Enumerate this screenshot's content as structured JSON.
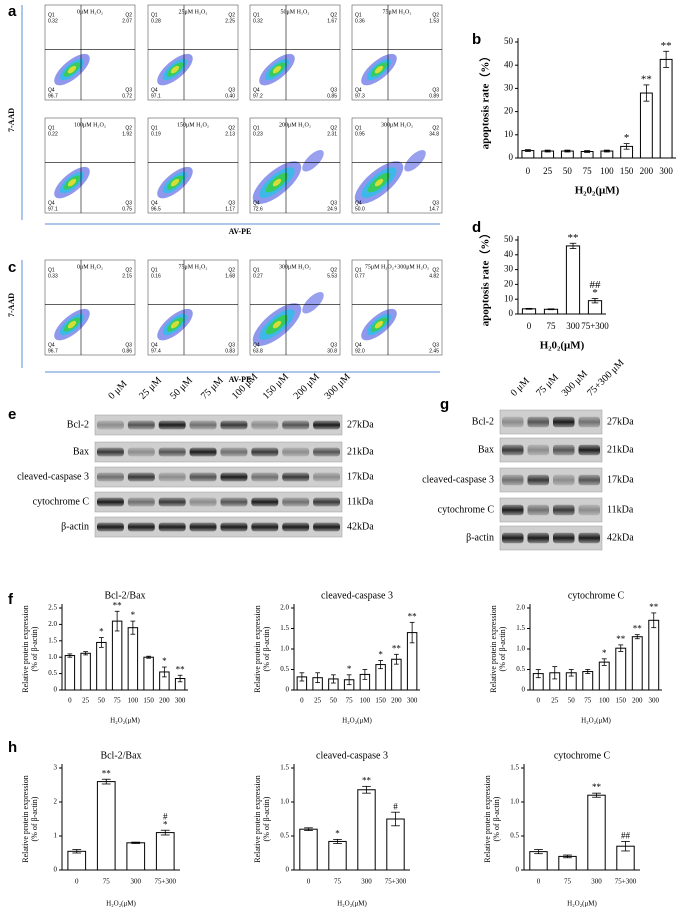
{
  "flow_cytometry": {
    "quadrant_names": [
      "Q1",
      "Q2",
      "Q3",
      "Q4"
    ],
    "panels": [
      {
        "letter": "a",
        "y_label": "7-AAD",
        "x_label": "AV-PE",
        "plots": [
          {
            "title": "0μM H₂O₂",
            "q1": "0.32",
            "q2": "2.07",
            "q3": "0.72",
            "q4": "96.7"
          },
          {
            "title": "25μM H₂O₂",
            "q1": "0.28",
            "q2": "2.25",
            "q3": "0.40",
            "q4": "97.1"
          },
          {
            "title": "50μM H₂O₂",
            "q1": "0.32",
            "q2": "1.67",
            "q3": "0.85",
            "q4": "97.2"
          },
          {
            "title": "75μM H₂O₂",
            "q1": "0.36",
            "q2": "1.53",
            "q3": "0.89",
            "q4": "97.3"
          },
          {
            "title": "100μM H₂O₂",
            "q1": "0.22",
            "q2": "1.92",
            "q3": "0.75",
            "q4": "97.1"
          },
          {
            "title": "150μM H₂O₂",
            "q1": "0.19",
            "q2": "2.13",
            "q3": "1.17",
            "q4": "96.5"
          },
          {
            "title": "200μM H₂O₂",
            "q1": "0.23",
            "q2": "2.31",
            "q3": "24.9",
            "q4": "72.6"
          },
          {
            "title": "300μM H₂O₂",
            "q1": "0.95",
            "q2": "34.8",
            "q3": "14.7",
            "q4": "50.0"
          }
        ]
      },
      {
        "letter": "c",
        "y_label": "7-AAD",
        "x_label": "AV-PE",
        "plots": [
          {
            "title": "0μM H₂O₂",
            "q1": "0.33",
            "q2": "2.15",
            "q3": "0.86",
            "q4": "96.7"
          },
          {
            "title": "75μM H₂O₂",
            "q1": "0.16",
            "q2": "1.68",
            "q3": "0.83",
            "q4": "97.4"
          },
          {
            "title": "300μM H₂O₂",
            "q1": "0.27",
            "q2": "5.53",
            "q3": "30.8",
            "q4": "63.8"
          },
          {
            "title": "75μM H₂O₂+300μM H₂O₂",
            "q1": "0.77",
            "q2": "4.82",
            "q3": "2.45",
            "q4": "92.0"
          }
        ]
      }
    ]
  },
  "western_blots": [
    {
      "letter": "e",
      "lanes": [
        "0 μM",
        "25 μM",
        "50 μM",
        "75 μM",
        "100 μM",
        "150 μM",
        "200 μM",
        "300 μM"
      ],
      "proteins": [
        "Bcl-2",
        "Bax",
        "cleaved-caspase 3",
        "cytochrome C",
        "β-actin"
      ],
      "sizes": [
        "27kDa",
        "21kDa",
        "17kDa",
        "11kDa",
        "42kDa"
      ]
    },
    {
      "letter": "g",
      "lanes": [
        "0 μM",
        "75 μM",
        "300 μM",
        "75+300 μM"
      ],
      "proteins": [
        "Bcl-2",
        "Bax",
        "cleaved-caspase 3",
        "cytochrome C",
        "β-actin"
      ],
      "sizes": [
        "27kDa",
        "21kDa",
        "17kDa",
        "11kDa",
        "42kDa"
      ]
    }
  ],
  "chart_data": [
    {
      "type": "bar",
      "panel_label": "b",
      "ylabel": [
        "apoptosis rate（%）"
      ],
      "xlabel": "H₂0₂(μM)",
      "categories": [
        "0",
        "25",
        "50",
        "75",
        "100",
        "150",
        "200",
        "300"
      ],
      "values": [
        3.2,
        3,
        3,
        2.8,
        3,
        5,
        28,
        42.5
      ],
      "errors": [
        0.4,
        0.4,
        0.4,
        0.4,
        0.4,
        1.2,
        3.5,
        3.5
      ],
      "annotations": [
        null,
        null,
        null,
        null,
        null,
        "*",
        "**",
        "**"
      ],
      "ylim": [
        0,
        50
      ],
      "yticks": [
        0,
        10,
        20,
        30,
        40,
        50
      ],
      "color": "#ffffff"
    },
    {
      "type": "bar",
      "panel_label": "d",
      "ylabel": [
        "apoptosis rate（%）"
      ],
      "xlabel": "H₂0₂(μM)",
      "categories": [
        "0",
        "75",
        "300",
        "75+300"
      ],
      "values": [
        3.5,
        3.2,
        46,
        9
      ],
      "errors": [
        0.3,
        0.3,
        1.8,
        1.5
      ],
      "annotations": [
        null,
        null,
        "**",
        [
          "##",
          "*"
        ]
      ],
      "ylim": [
        0,
        50
      ],
      "yticks": [
        0,
        10,
        20,
        30,
        40,
        50
      ],
      "color": "#ffffff"
    },
    {
      "type": "bar",
      "panel_label": "f",
      "title": "Bcl-2/Bax",
      "ylabel": [
        "Relative protein expression",
        "(% of β-actin)"
      ],
      "xlabel": "H₂O₂(μM)",
      "categories": [
        "0",
        "25",
        "50",
        "75",
        "100",
        "150",
        "200",
        "300"
      ],
      "values": [
        1.05,
        1.12,
        1.45,
        2.1,
        1.9,
        1.0,
        0.55,
        0.35
      ],
      "errors": [
        0.05,
        0.05,
        0.15,
        0.3,
        0.2,
        0.03,
        0.15,
        0.1
      ],
      "annotations": [
        null,
        null,
        "*",
        "**",
        "*",
        null,
        "*",
        "**"
      ],
      "ylim": [
        0,
        2.5
      ],
      "yticks": [
        0,
        0.5,
        {
          "value": 1,
          "label": "1.0"
        },
        1.5,
        {
          "value": 2,
          "label": "2.0"
        },
        2.5
      ],
      "color": "#ffffff"
    },
    {
      "type": "bar",
      "title": "cleaved-caspase 3",
      "ylabel": [
        "Relative protein expression",
        "(% of β-actin)"
      ],
      "xlabel": "H₂O₂(μM)",
      "categories": [
        "0",
        "25",
        "50",
        "75",
        "100",
        "150",
        "200",
        "300"
      ],
      "values": [
        0.32,
        0.3,
        0.27,
        0.25,
        0.38,
        0.62,
        0.75,
        1.4
      ],
      "errors": [
        0.1,
        0.12,
        0.1,
        0.12,
        0.12,
        0.1,
        0.12,
        0.25
      ],
      "annotations": [
        null,
        null,
        null,
        "*",
        null,
        "*",
        "**",
        "**"
      ],
      "ylim": [
        0,
        2
      ],
      "yticks": [
        0,
        0.5,
        {
          "value": 1,
          "label": "1.0"
        },
        1.5,
        {
          "value": 2,
          "label": "2.0"
        }
      ],
      "color": "#ffffff"
    },
    {
      "type": "bar",
      "title": "cytochrome C",
      "ylabel": [
        "Relative protein expression",
        "(% of β-actin)"
      ],
      "xlabel": "H₂O₂(μM)",
      "categories": [
        "0",
        "25",
        "50",
        "75",
        "100",
        "150",
        "200",
        "300"
      ],
      "values": [
        0.4,
        0.42,
        0.42,
        0.45,
        0.68,
        1.02,
        1.3,
        1.7
      ],
      "errors": [
        0.1,
        0.15,
        0.08,
        0.05,
        0.08,
        0.08,
        0.05,
        0.18
      ],
      "annotations": [
        null,
        null,
        null,
        null,
        "*",
        "**",
        "**",
        "**"
      ],
      "ylim": [
        0,
        2
      ],
      "yticks": [
        0,
        0.5,
        {
          "value": 1,
          "label": "1.0"
        },
        1.5,
        {
          "value": 2,
          "label": "2.0"
        }
      ],
      "color": "#ffffff"
    },
    {
      "type": "bar",
      "panel_label": "h",
      "title": "Bcl-2/Bax",
      "ylabel": [
        "Relative protein expression",
        "(% of β-actin)"
      ],
      "xlabel": "H₂O₂(μM)",
      "categories": [
        "0",
        "75",
        "300",
        "75+300"
      ],
      "values": [
        0.55,
        2.6,
        0.8,
        1.1
      ],
      "errors": [
        0.05,
        0.07,
        0.02,
        0.07
      ],
      "annotations": [
        null,
        "**",
        null,
        [
          "#",
          "*"
        ]
      ],
      "ylim": [
        0,
        3
      ],
      "yticks": [
        0,
        1,
        2,
        3
      ],
      "color": "#ffffff"
    },
    {
      "type": "bar",
      "title": "cleaved-caspase 3",
      "ylabel": [
        "Relative protein expression",
        "(% of β-actin)"
      ],
      "xlabel": "H₂O₂(μM)",
      "categories": [
        "0",
        "75",
        "300",
        "75+300"
      ],
      "values": [
        0.6,
        0.42,
        1.18,
        0.75
      ],
      "errors": [
        0.02,
        0.03,
        0.05,
        0.1
      ],
      "annotations": [
        null,
        "*",
        "**",
        "#"
      ],
      "ylim": [
        0,
        1.5
      ],
      "yticks": [
        0,
        0.5,
        {
          "value": 1,
          "label": "1.0"
        },
        1.5
      ],
      "color": "#ffffff"
    },
    {
      "type": "bar",
      "title": "cytochrome C",
      "ylabel": [
        "Relative protein expression",
        "(% of β-actin)"
      ],
      "xlabel": "H₂O₂(μM)",
      "categories": [
        "0",
        "75",
        "300",
        "75+300"
      ],
      "values": [
        0.27,
        0.2,
        1.1,
        0.35
      ],
      "errors": [
        0.03,
        0.02,
        0.03,
        0.07
      ],
      "annotations": [
        null,
        null,
        "**",
        "##"
      ],
      "ylim": [
        0,
        1.5
      ],
      "yticks": [
        0,
        0.5,
        {
          "value": 1,
          "label": "1.0"
        },
        1.5
      ],
      "color": "#ffffff"
    }
  ]
}
